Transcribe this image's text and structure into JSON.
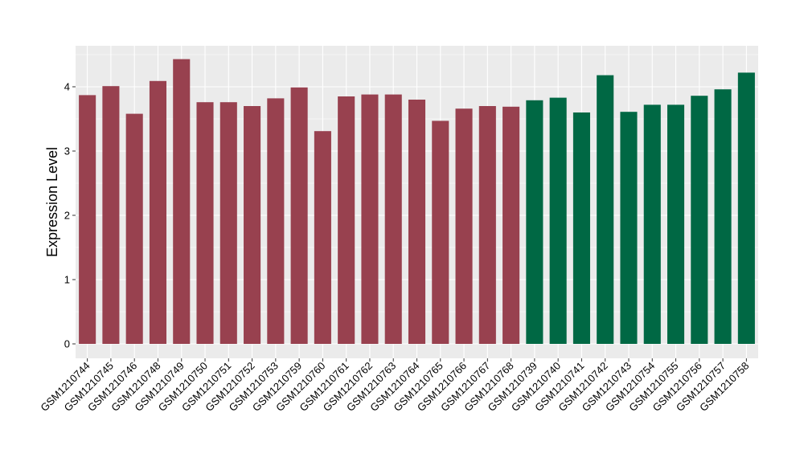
{
  "chart_data": {
    "type": "bar",
    "title": "",
    "xlabel": "",
    "ylabel": "Expression Level",
    "ylim": [
      0,
      4.5
    ],
    "yticks": [
      0,
      1,
      2,
      3,
      4
    ],
    "ytick_labels": [
      "0",
      "1",
      "2",
      "3",
      "4"
    ],
    "grid": true,
    "legend": "none",
    "colors": {
      "group_a": "#98414f",
      "group_b": "#006844",
      "panel": "#ebebeb",
      "grid": "#ffffff"
    },
    "categories": [
      "GSM1210744",
      "GSM1210745",
      "GSM1210746",
      "GSM1210748",
      "GSM1210749",
      "GSM1210750",
      "GSM1210751",
      "GSM1210752",
      "GSM1210753",
      "GSM1210759",
      "GSM1210760",
      "GSM1210761",
      "GSM1210762",
      "GSM1210763",
      "GSM1210764",
      "GSM1210765",
      "GSM1210766",
      "GSM1210767",
      "GSM1210768",
      "GSM1210739",
      "GSM1210740",
      "GSM1210741",
      "GSM1210742",
      "GSM1210743",
      "GSM1210754",
      "GSM1210755",
      "GSM1210756",
      "GSM1210757",
      "GSM1210758"
    ],
    "values": [
      3.87,
      4.01,
      3.58,
      4.09,
      4.43,
      3.76,
      3.76,
      3.7,
      3.82,
      3.99,
      3.31,
      3.85,
      3.88,
      3.88,
      3.8,
      3.47,
      3.66,
      3.7,
      3.69,
      3.79,
      3.83,
      3.6,
      4.18,
      3.61,
      3.72,
      3.72,
      3.86,
      3.96,
      4.22
    ],
    "groups": [
      "a",
      "a",
      "a",
      "a",
      "a",
      "a",
      "a",
      "a",
      "a",
      "a",
      "a",
      "a",
      "a",
      "a",
      "a",
      "a",
      "a",
      "a",
      "a",
      "b",
      "b",
      "b",
      "b",
      "b",
      "b",
      "b",
      "b",
      "b",
      "b"
    ]
  }
}
